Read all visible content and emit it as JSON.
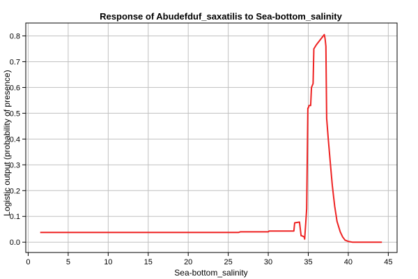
{
  "chart_data": {
    "type": "line",
    "title": "Response of Abudefduf_saxatilis to Sea-bottom_salinity",
    "xlabel": "Sea-bottom_salinity",
    "ylabel": "Logistic output (probability of presence)",
    "xlim": [
      -0.3,
      46.1
    ],
    "ylim": [
      -0.04,
      0.85
    ],
    "xticks": [
      0,
      5,
      10,
      15,
      20,
      25,
      30,
      35,
      40,
      45
    ],
    "yticks": [
      0.0,
      0.1,
      0.2,
      0.3,
      0.4,
      0.5,
      0.6,
      0.7,
      0.8
    ],
    "ytick_labels": [
      "0.0",
      "0.1",
      "0.2",
      "0.3",
      "0.4",
      "0.5",
      "0.6",
      "0.7",
      "0.8"
    ],
    "grid": true,
    "background": "#ffffff",
    "grid_color": "#c0c0c0",
    "series": [
      {
        "color": "#ee2222",
        "x": [
          1.5,
          26.3,
          26.5,
          30.0,
          30.1,
          33.2,
          33.3,
          33.9,
          34.1,
          34.2,
          34.5,
          34.55,
          34.7,
          34.8,
          34.95,
          35.0,
          35.1,
          35.3,
          35.4,
          35.6,
          35.7,
          36.0,
          36.5,
          37.0,
          37.1,
          37.2,
          37.3,
          37.5,
          37.8,
          38.0,
          38.3,
          38.6,
          39.0,
          39.3,
          39.6,
          40.0,
          40.5,
          41.0,
          42.0,
          43.0,
          44.2
        ],
        "y": [
          0.038,
          0.038,
          0.04,
          0.04,
          0.043,
          0.043,
          0.075,
          0.078,
          0.025,
          0.025,
          0.02,
          0.012,
          0.08,
          0.13,
          0.52,
          0.52,
          0.53,
          0.53,
          0.6,
          0.615,
          0.75,
          0.765,
          0.785,
          0.805,
          0.79,
          0.76,
          0.48,
          0.4,
          0.29,
          0.22,
          0.14,
          0.08,
          0.04,
          0.02,
          0.008,
          0.003,
          0.0,
          0.0,
          0.0,
          0.0,
          0.0
        ]
      }
    ]
  }
}
